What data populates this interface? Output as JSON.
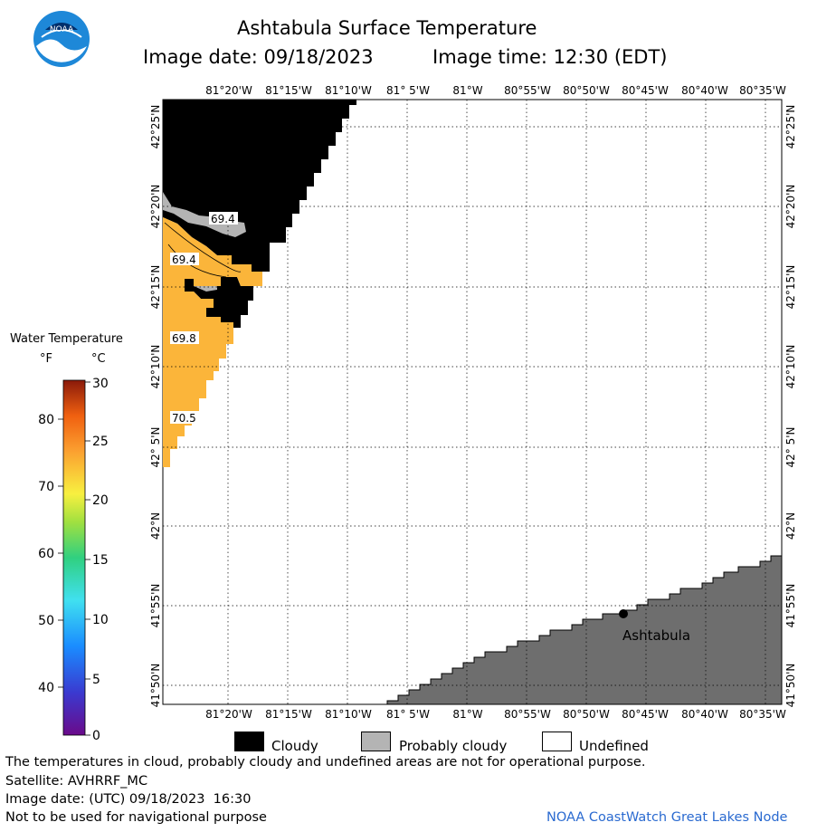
{
  "header": {
    "title": "Ashtabula Surface Temperature",
    "image_date": "Image date: 09/18/2023",
    "image_time": "Image time: 12:30 (EDT)"
  },
  "colors": {
    "cloudy": "#000000",
    "probably_cloudy": "#b4b4b4",
    "land": "#6e6e6e",
    "water_temp": "#fbb53a",
    "logo_blue": "#1e88d8",
    "logo_navy": "#002f6c"
  },
  "logo": {
    "text": "NOAA",
    "icon": "noaa-logo-icon"
  },
  "map": {
    "top_lon_labels": [
      "81°20'W",
      "81°15'W",
      "81°10'W",
      "81° 5'W",
      "81°W",
      "80°55'W",
      "80°50'W",
      "80°45'W",
      "80°40'W",
      "80°35'W"
    ],
    "bottom_lon_labels": [
      "81°20'W",
      "81°15'W",
      "81°10'W",
      "81° 5'W",
      "81°W",
      "80°55'W",
      "80°50'W",
      "80°45'W",
      "80°40'W",
      "80°35'W"
    ],
    "lat_labels": [
      "42°25'N",
      "42°20'N",
      "42°15'N",
      "42°10'N",
      "42° 5'N",
      "42°N",
      "41°55'N",
      "41°50'N"
    ],
    "contour_labels": [
      "69.4",
      "69.4",
      "69.8",
      "70.5"
    ],
    "city_label": "Ashtabula"
  },
  "scale": {
    "title": "Water Temperature",
    "unit_f": "°F",
    "unit_c": "°C",
    "f_ticks": [
      "80",
      "70",
      "60",
      "50",
      "40"
    ],
    "c_ticks": [
      "30",
      "25",
      "20",
      "15",
      "10",
      "5",
      "0"
    ]
  },
  "legend": {
    "cloudy": "Cloudy",
    "probably_cloudy": "Probably cloudy",
    "undefined": "Undefined"
  },
  "footer": {
    "disclaimer": "The temperatures in cloud, probably cloudy and undefined areas are not for operational purpose.",
    "satellite": "Satellite: AVHRRF_MC",
    "utc_date": "Image date: (UTC) 09/18/2023  16:30",
    "navigation": "Not to be used for navigational purpose",
    "credit": "NOAA CoastWatch Great Lakes Node"
  }
}
